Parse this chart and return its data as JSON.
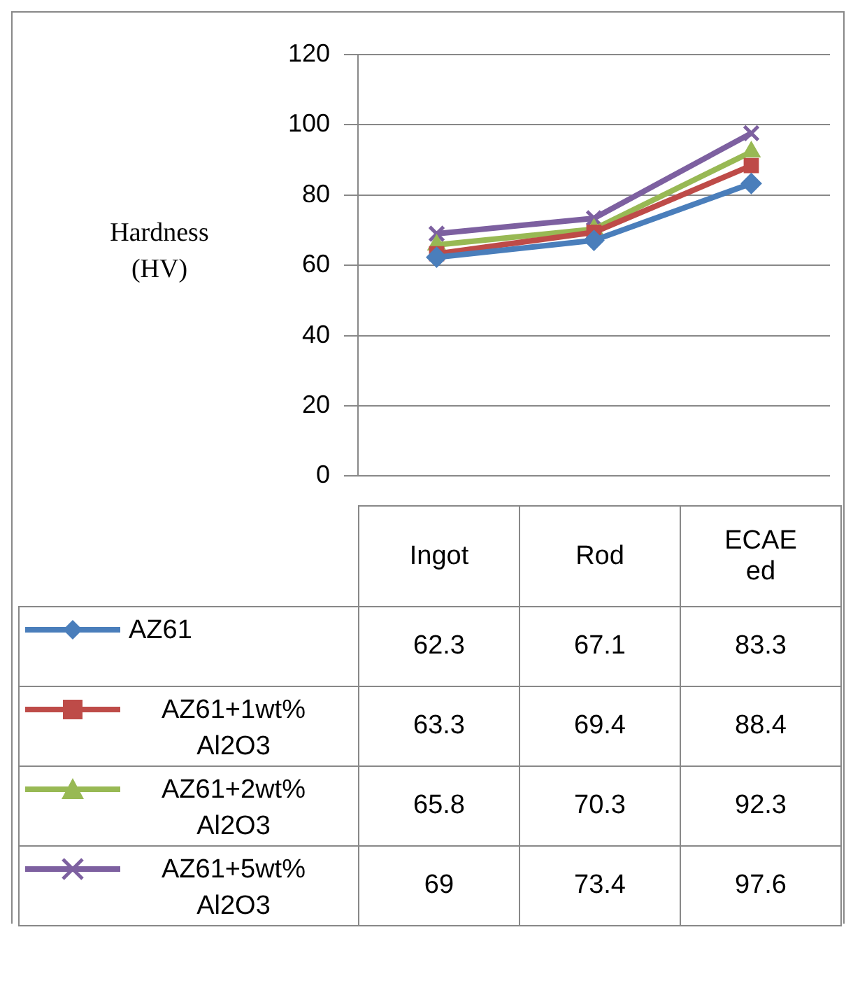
{
  "chart_data": {
    "type": "line",
    "ylabel": "Hardness (HV)",
    "categories": [
      "Ingot",
      "Rod",
      "ECAEed"
    ],
    "series": [
      {
        "name": "AZ61",
        "color": "#4a7ebb",
        "marker": "diamond",
        "values": [
          62.3,
          67.1,
          83.3
        ]
      },
      {
        "name": "AZ61+1wt% Al2O3",
        "color": "#be4b48",
        "marker": "square",
        "values": [
          63.3,
          69.4,
          88.4
        ]
      },
      {
        "name": "AZ61+2wt% Al2O3",
        "color": "#98b954",
        "marker": "triangle",
        "values": [
          65.8,
          70.3,
          92.3
        ]
      },
      {
        "name": "AZ61+5wt% Al2O3",
        "color": "#7d60a0",
        "marker": "cross",
        "values": [
          69,
          73.4,
          97.6
        ]
      }
    ],
    "ylim": [
      0,
      120
    ],
    "yticks": [
      0,
      20,
      40,
      60,
      80,
      100,
      120
    ],
    "grid": "y",
    "legend": "bottom",
    "data_labels": true,
    "line_style": "solid"
  }
}
